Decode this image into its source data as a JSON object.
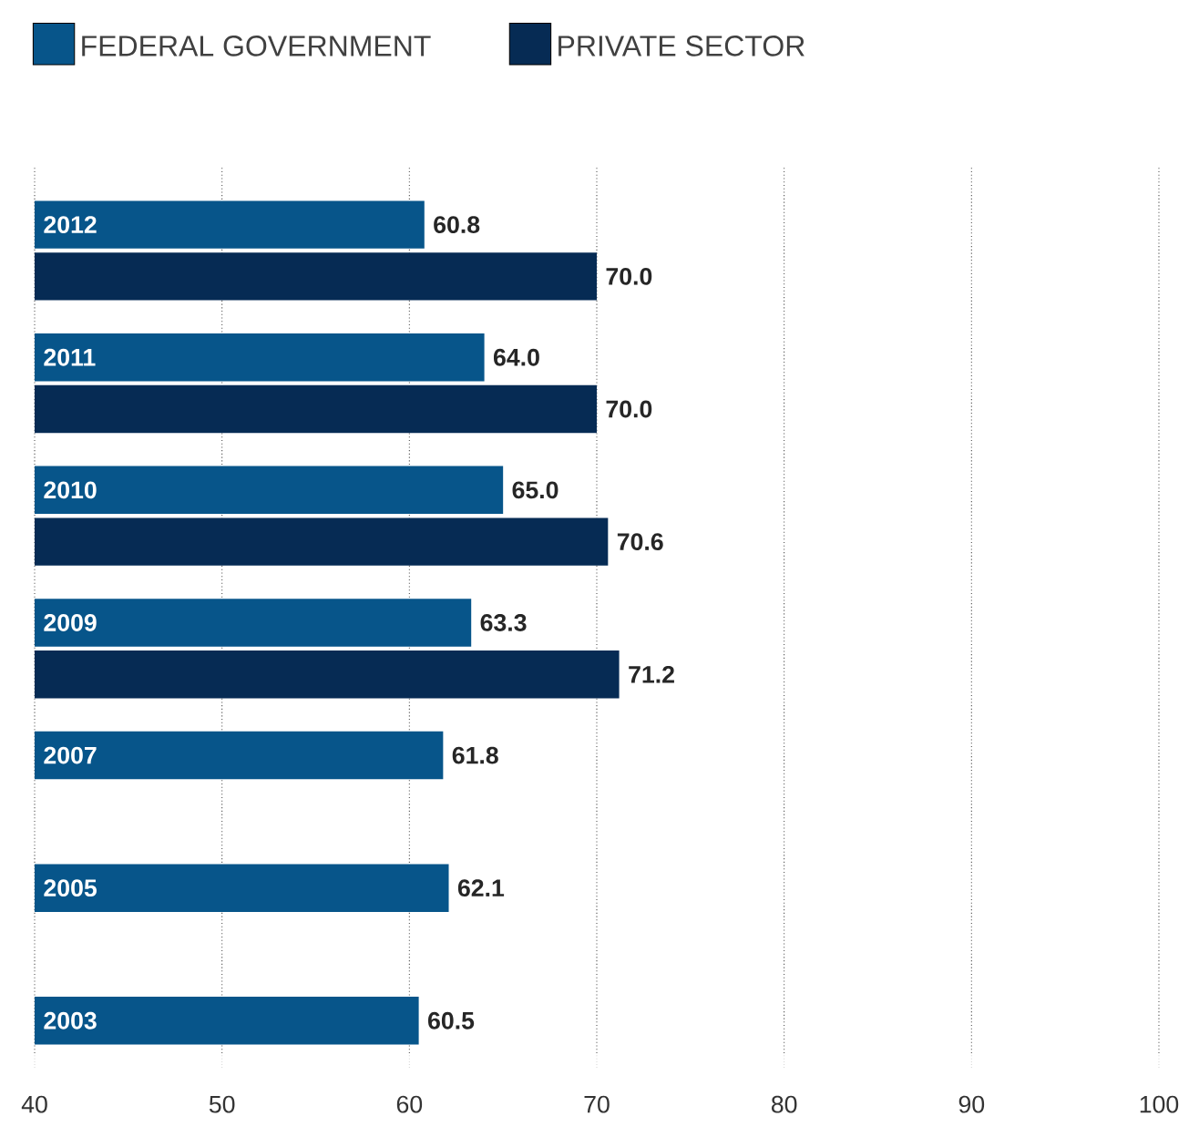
{
  "chart_data": {
    "type": "bar",
    "orientation": "horizontal",
    "categories": [
      "2012",
      "2011",
      "2010",
      "2009",
      "2007",
      "2005",
      "2003"
    ],
    "series": [
      {
        "name": "FEDERAL GOVERNMENT",
        "color": "#07558a",
        "values": [
          60.8,
          64.0,
          65.0,
          63.3,
          61.8,
          62.1,
          60.5
        ],
        "value_labels": [
          "60.8",
          "64.0",
          "65.0",
          "63.3",
          "61.8",
          "62.1",
          "60.5"
        ]
      },
      {
        "name": "PRIVATE SECTOR",
        "color": "#062b54",
        "values": [
          70.0,
          70.0,
          70.6,
          71.2,
          null,
          null,
          null
        ],
        "value_labels": [
          "70.0",
          "70.0",
          "70.6",
          "71.2",
          null,
          null,
          null
        ]
      }
    ],
    "xlim": [
      40,
      100
    ],
    "xticks": [
      40,
      50,
      60,
      70,
      80,
      90,
      100
    ],
    "grid": "x",
    "legend": "top left"
  }
}
